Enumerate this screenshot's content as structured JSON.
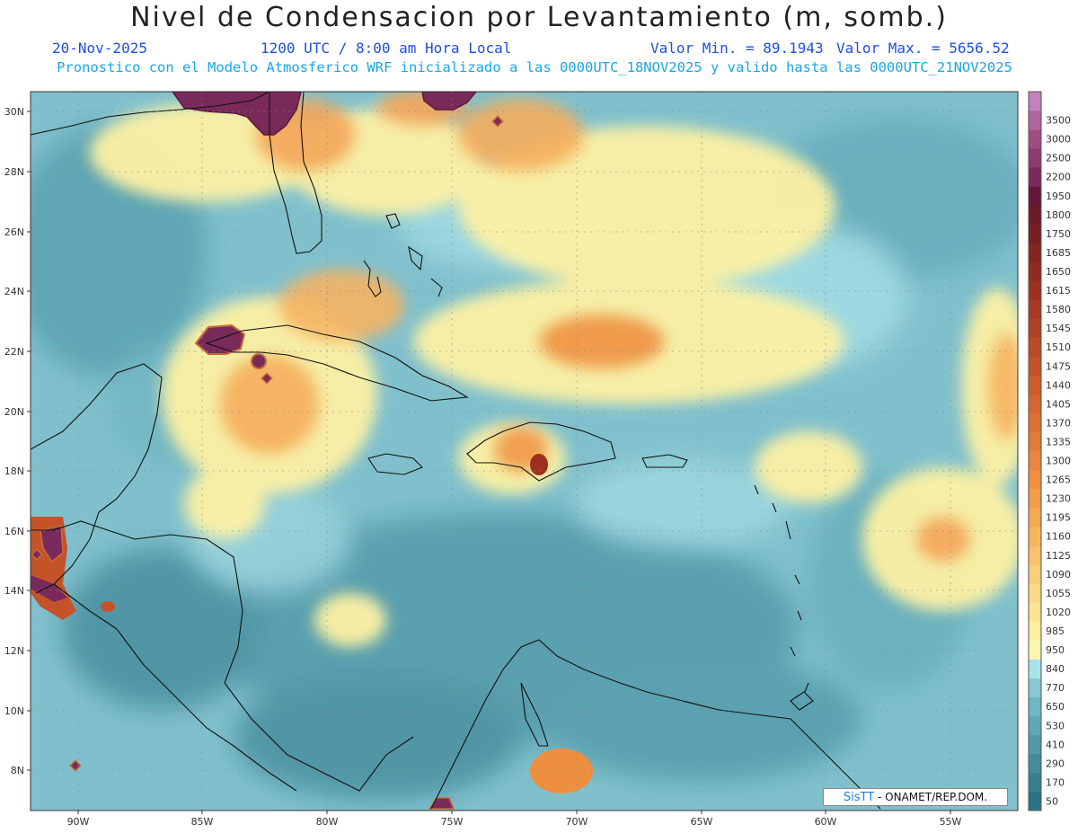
{
  "header": {
    "title": "Nivel de Condensacion por Levantamiento (m, somb.)",
    "date": "20-Nov-2025",
    "time": "1200 UTC / 8:00 am Hora Local",
    "min_label": "Valor Min. = 89.1943",
    "max_label": "Valor Max. = 5656.52",
    "forecast_line": "Pronostico con el Modelo Atmosferico WRF inicializado a las 0000UTC_18NOV2025 y valido hasta las  0000UTC_21NOV2025"
  },
  "map": {
    "lat_ticks": [
      "30N",
      "28N",
      "26N",
      "24N",
      "22N",
      "20N",
      "18N",
      "16N",
      "14N",
      "12N",
      "10N",
      "8N"
    ],
    "lon_ticks": [
      "90W",
      "85W",
      "80W",
      "75W",
      "70W",
      "65W",
      "60W",
      "55W"
    ],
    "legend": [
      {
        "label": "50",
        "color": "#2a7386"
      },
      {
        "label": "170",
        "color": "#367f91"
      },
      {
        "label": "290",
        "color": "#438c9c"
      },
      {
        "label": "410",
        "color": "#5199a8"
      },
      {
        "label": "530",
        "color": "#60a7b5"
      },
      {
        "label": "650",
        "color": "#70b6c3"
      },
      {
        "label": "770",
        "color": "#86c8d3"
      },
      {
        "label": "840",
        "color": "#a9e3ea"
      },
      {
        "label": "950",
        "color": "#fdf6ad"
      },
      {
        "label": "985",
        "color": "#fdeea0"
      },
      {
        "label": "1020",
        "color": "#fce493"
      },
      {
        "label": "1055",
        "color": "#fbd986"
      },
      {
        "label": "1090",
        "color": "#facd78"
      },
      {
        "label": "1125",
        "color": "#f9c16a"
      },
      {
        "label": "1160",
        "color": "#f8b45d"
      },
      {
        "label": "1195",
        "color": "#f6a853"
      },
      {
        "label": "1230",
        "color": "#f39c4a"
      },
      {
        "label": "1265",
        "color": "#ef9043"
      },
      {
        "label": "1300",
        "color": "#ea853d"
      },
      {
        "label": "1335",
        "color": "#e47a38"
      },
      {
        "label": "1370",
        "color": "#dd7034"
      },
      {
        "label": "1405",
        "color": "#d66630"
      },
      {
        "label": "1440",
        "color": "#ce5c2d"
      },
      {
        "label": "1475",
        "color": "#c5532a"
      },
      {
        "label": "1510",
        "color": "#bb4a27"
      },
      {
        "label": "1545",
        "color": "#b14224"
      },
      {
        "label": "1580",
        "color": "#a63a22"
      },
      {
        "label": "1615",
        "color": "#9b3220"
      },
      {
        "label": "1650",
        "color": "#902b1f"
      },
      {
        "label": "1685",
        "color": "#84251f"
      },
      {
        "label": "1750",
        "color": "#781f22"
      },
      {
        "label": "1800",
        "color": "#6b1a27"
      },
      {
        "label": "1950",
        "color": "#63173a"
      },
      {
        "label": "2200",
        "color": "#7a2a5a"
      },
      {
        "label": "2500",
        "color": "#8c3b6e"
      },
      {
        "label": "3000",
        "color": "#9e4d82"
      },
      {
        "label": "3500",
        "color": "#b164a0"
      },
      {
        "label": "",
        "color": "#c57fbc"
      }
    ],
    "credit_logo": "SisTT",
    "credit_text": " - ONAMET/REP.DOM."
  }
}
